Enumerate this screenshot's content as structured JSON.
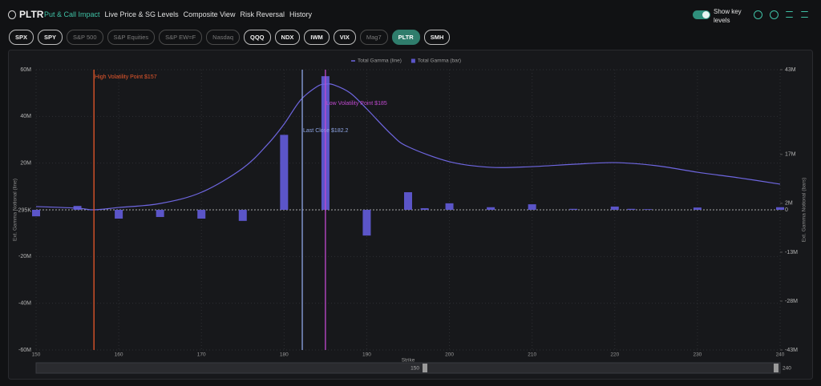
{
  "header": {
    "ticker": "PLTR",
    "tabs": [
      "Put & Call Impact",
      "Live Price & SG Levels",
      "Composite View",
      "Risk Reversal",
      "History"
    ],
    "active_tab": 0,
    "toggle_label": "Show key levels"
  },
  "chips": [
    {
      "label": "SPX",
      "state": "on"
    },
    {
      "label": "SPY",
      "state": "on"
    },
    {
      "label": "S&P 500",
      "state": "off"
    },
    {
      "label": "S&P Equities",
      "state": "off"
    },
    {
      "label": "S&P EW=F",
      "state": "off"
    },
    {
      "label": "Nasdaq",
      "state": "off"
    },
    {
      "label": "QQQ",
      "state": "on"
    },
    {
      "label": "NDX",
      "state": "on"
    },
    {
      "label": "IWM",
      "state": "on"
    },
    {
      "label": "VIX",
      "state": "on"
    },
    {
      "label": "Mag7",
      "state": "off"
    },
    {
      "label": "PLTR",
      "state": "active"
    },
    {
      "label": "SMH",
      "state": "on"
    }
  ],
  "chart_data": {
    "type": "combo",
    "x_label": "Strike",
    "y_label": "Ext. Gamma Notional (line)",
    "y2_label": "Ext. Gamma Notional (bars)",
    "xlim": [
      150,
      240
    ],
    "xticks": [
      150,
      160,
      170,
      180,
      190,
      200,
      210,
      220,
      230,
      240
    ],
    "ylim": [
      -60000000,
      60000000
    ],
    "yticks": [
      {
        "value": 60000000,
        "label": "60M"
      },
      {
        "value": 40000000,
        "label": "40M"
      },
      {
        "value": 20000000,
        "label": "20M"
      },
      {
        "value": -295000,
        "label": "-295K"
      },
      {
        "value": -20000000,
        "label": "-20M"
      },
      {
        "value": -40000000,
        "label": "-40M"
      },
      {
        "value": -60000000,
        "label": "-60M"
      }
    ],
    "y2lim": [
      -43000000,
      43000000
    ],
    "y2ticks": [
      {
        "value": 43000000,
        "label": "43M"
      },
      {
        "value": 17000000,
        "label": "17M"
      },
      {
        "value": 2000000,
        "label": "2M"
      },
      0,
      {
        "value": -13000000,
        "label": "-13M"
      },
      {
        "value": -28000000,
        "label": "-28M"
      },
      {
        "value": -43000000,
        "label": "-43M"
      }
    ],
    "grid": true,
    "series": [
      {
        "name": "Total Gamma (line)",
        "type": "line",
        "color": "#6e66e0",
        "x": [
          150,
          155,
          157,
          160,
          165,
          170,
          175,
          178,
          180,
          182,
          184,
          185,
          186,
          188,
          190,
          193,
          195,
          200,
          205,
          210,
          215,
          220,
          225,
          230,
          235,
          240
        ],
        "values": [
          1400000,
          700000,
          0,
          1000000,
          2700000,
          7500000,
          17800000,
          28000000,
          36700000,
          47000000,
          52800000,
          53800000,
          53500000,
          50000000,
          43200000,
          32200000,
          27000000,
          20600000,
          18200000,
          18500000,
          19500000,
          20200000,
          18900000,
          16100000,
          13700000,
          11000000
        ]
      },
      {
        "name": "Total Gamma (bar)",
        "type": "bar",
        "axis": "y2",
        "color": "#5b55c8",
        "x": [
          150,
          155,
          160,
          165,
          170,
          175,
          180,
          185,
          190,
          195,
          197,
          200,
          205,
          210,
          215,
          220,
          222,
          224,
          230,
          240
        ],
        "values": [
          -2000000,
          1200000,
          -2700000,
          -2200000,
          -2700000,
          -3400000,
          23000000,
          41000000,
          -7900000,
          5400000,
          500000,
          2000000,
          800000,
          1700000,
          300000,
          1000000,
          300000,
          200000,
          700000,
          800000
        ]
      }
    ],
    "annotations": [
      {
        "label": "High Volatility Point $157",
        "x": 157,
        "color": "#e8582c"
      },
      {
        "label": "Last Close $182.2",
        "x": 182.2,
        "color": "#8fa6e6"
      },
      {
        "label": "Low Volatility Point $185",
        "x": 185,
        "color": "#c04ad0"
      }
    ],
    "range_slider": [
      150,
      240
    ]
  }
}
